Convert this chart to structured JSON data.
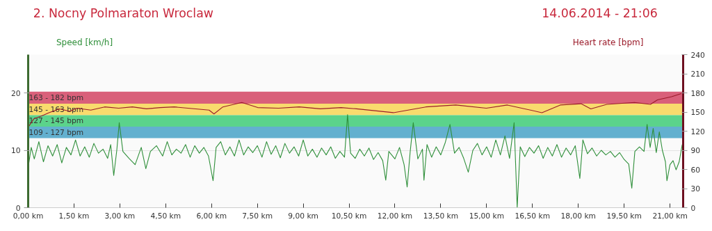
{
  "chart_data": {
    "type": "line",
    "title": "2. Nocny Polmaraton Wroclaw",
    "subtitle": "14.06.2014 - 21:06",
    "ylabel": "Speed [km/h]",
    "y2label": "Heart rate [bpm]",
    "xlim": [
      0,
      21.43
    ],
    "xticks": [
      {
        "value": 0,
        "label": "0,00 km"
      },
      {
        "value": 1.5,
        "label": "1,50 km"
      },
      {
        "value": 3,
        "label": "3,00 km"
      },
      {
        "value": 4.5,
        "label": "4,50 km"
      },
      {
        "value": 6,
        "label": "6,00 km"
      },
      {
        "value": 7.5,
        "label": "7,50 km"
      },
      {
        "value": 9,
        "label": "9,00 km"
      },
      {
        "value": 10.5,
        "label": "10,50 km"
      },
      {
        "value": 12,
        "label": "12,00 km"
      },
      {
        "value": 13.5,
        "label": "13,50 km"
      },
      {
        "value": 15,
        "label": "15,00 km"
      },
      {
        "value": 16.5,
        "label": "16,50 km"
      },
      {
        "value": 18,
        "label": "18,00 km"
      },
      {
        "value": 19.5,
        "label": "19,50 km"
      },
      {
        "value": 21,
        "label": "21,00 km"
      }
    ],
    "ylim": [
      0,
      26.67
    ],
    "yticks": [
      0,
      10,
      20
    ],
    "y2lim": [
      0,
      240
    ],
    "y2ticks": [
      0,
      30,
      60,
      90,
      120,
      150,
      180,
      210,
      240
    ],
    "grid": "y",
    "marker": "none",
    "line_style": "solid",
    "bands": [
      {
        "axis": "y2",
        "from": 163,
        "to": 182,
        "label": "163 - 182 bpm",
        "color": "#d9607a"
      },
      {
        "axis": "y2",
        "from": 145,
        "to": 163,
        "label": "145 - 163 bpm",
        "color": "#f9db6d"
      },
      {
        "axis": "y2",
        "from": 127,
        "to": 145,
        "label": "127 - 145 bpm",
        "color": "#5bd38b"
      },
      {
        "axis": "y2",
        "from": 109,
        "to": 127,
        "label": "109 - 127 bpm",
        "color": "#63b0cf"
      }
    ],
    "series": [
      {
        "color": "#2f8f3a",
        "x": [
          0.0,
          0.1,
          0.2,
          0.35,
          0.5,
          0.65,
          0.8,
          0.95,
          1.1,
          1.25,
          1.4,
          1.55,
          1.7,
          1.85,
          2.0,
          2.15,
          2.3,
          2.45,
          2.6,
          2.7,
          2.8,
          2.9,
          2.98,
          3.1,
          3.3,
          3.5,
          3.7,
          3.85,
          4.0,
          4.2,
          4.4,
          4.55,
          4.7,
          4.85,
          5.0,
          5.15,
          5.3,
          5.45,
          5.6,
          5.75,
          5.9,
          6.05,
          6.15,
          6.3,
          6.45,
          6.6,
          6.75,
          6.9,
          7.05,
          7.2,
          7.35,
          7.5,
          7.65,
          7.8,
          7.95,
          8.1,
          8.25,
          8.4,
          8.55,
          8.7,
          8.85,
          9.0,
          9.15,
          9.3,
          9.45,
          9.6,
          9.75,
          9.9,
          10.05,
          10.2,
          10.35,
          10.45,
          10.55,
          10.7,
          10.85,
          11.0,
          11.15,
          11.3,
          11.45,
          11.6,
          11.7,
          11.8,
          12.0,
          12.15,
          12.3,
          12.4,
          12.5,
          12.6,
          12.75,
          12.9,
          12.95,
          13.05,
          13.2,
          13.35,
          13.5,
          13.65,
          13.8,
          13.95,
          14.1,
          14.25,
          14.4,
          14.55,
          14.7,
          14.85,
          15.0,
          15.15,
          15.3,
          15.45,
          15.6,
          15.75,
          15.9,
          16.0,
          16.1,
          16.25,
          16.4,
          16.55,
          16.7,
          16.85,
          17.0,
          17.15,
          17.3,
          17.45,
          17.6,
          17.75,
          17.9,
          18.05,
          18.15,
          18.3,
          18.45,
          18.6,
          18.75,
          18.9,
          19.05,
          19.2,
          19.35,
          19.5,
          19.65,
          19.75,
          19.85,
          20.0,
          20.15,
          20.25,
          20.35,
          20.45,
          20.55,
          20.65,
          20.75,
          20.85,
          20.9,
          21.0,
          21.1,
          21.2,
          21.3,
          21.4
        ],
        "values": [
          7.0,
          10.5,
          8.5,
          11.5,
          8.0,
          10.8,
          9.0,
          11.0,
          7.8,
          10.5,
          9.2,
          11.8,
          9.0,
          10.6,
          8.8,
          11.2,
          9.5,
          10.2,
          8.6,
          11.0,
          5.6,
          10.0,
          14.8,
          9.8,
          8.6,
          7.5,
          10.5,
          6.8,
          9.8,
          10.8,
          9.0,
          11.5,
          9.2,
          10.2,
          9.5,
          11.0,
          8.8,
          10.8,
          9.5,
          10.5,
          9.0,
          4.7,
          10.5,
          11.5,
          9.2,
          10.6,
          9.0,
          11.8,
          9.2,
          10.6,
          9.6,
          10.8,
          8.8,
          11.5,
          9.3,
          10.8,
          8.7,
          11.2,
          9.5,
          10.6,
          9.0,
          11.8,
          9.0,
          10.2,
          8.8,
          10.4,
          9.2,
          10.6,
          8.6,
          9.8,
          8.8,
          16.2,
          9.5,
          8.6,
          10.2,
          9.0,
          10.4,
          8.4,
          9.6,
          8.2,
          4.8,
          9.8,
          8.5,
          10.5,
          7.5,
          3.6,
          9.8,
          14.8,
          8.5,
          10.2,
          4.8,
          11.0,
          8.8,
          10.6,
          9.2,
          11.4,
          14.5,
          9.5,
          10.5,
          8.6,
          6.2,
          10.0,
          11.2,
          9.2,
          10.6,
          8.8,
          11.8,
          9.2,
          12.5,
          8.6,
          14.8,
          0.0,
          10.6,
          8.9,
          10.5,
          9.5,
          10.8,
          8.6,
          10.5,
          9.0,
          11.0,
          8.8,
          10.4,
          9.2,
          10.8,
          5.1,
          11.8,
          9.4,
          10.4,
          9.0,
          10.0,
          9.2,
          9.8,
          8.8,
          9.6,
          8.4,
          7.6,
          3.4,
          9.8,
          10.6,
          9.8,
          14.5,
          10.5,
          13.8,
          9.6,
          13.2,
          10.0,
          8.0,
          4.7,
          7.5,
          8.2,
          6.6,
          8.0,
          11.0
        ]
      },
      {
        "color": "#9b1b2a",
        "axis": "y2",
        "x": [
          0,
          0.18,
          0.34,
          0.5,
          0.68,
          1.02,
          1.37,
          1.59,
          2.05,
          2.5,
          2.96,
          3.41,
          3.87,
          4.32,
          4.78,
          5.23,
          5.92,
          6.08,
          6.37,
          6.99,
          7.51,
          8.19,
          8.87,
          9.56,
          10.24,
          10.74,
          11.95,
          13.01,
          13.99,
          14.99,
          15.68,
          16.81,
          17.41,
          18.09,
          18.41,
          18.93,
          19.84,
          20.36,
          20.59,
          21.05,
          21.37
        ],
        "values": [
          126,
          139,
          142,
          145,
          149,
          155,
          151,
          156,
          153,
          158,
          156,
          158,
          155,
          157,
          158,
          156,
          153,
          147,
          158,
          165,
          157,
          156,
          158,
          155,
          157,
          155,
          149,
          158,
          161,
          156,
          161,
          149,
          161,
          163,
          155,
          162,
          165,
          162,
          169,
          174,
          179
        ]
      }
    ]
  }
}
